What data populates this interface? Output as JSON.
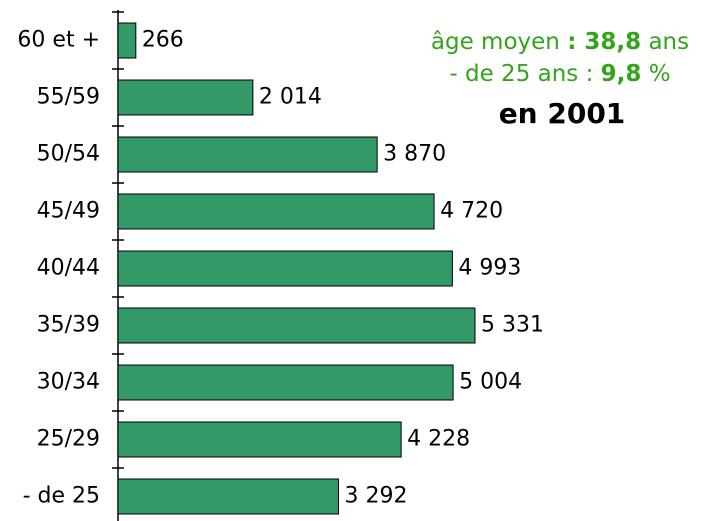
{
  "chart_data": {
    "type": "hbar",
    "categories": [
      "60 et +",
      "55/59",
      "50/54",
      "45/49",
      "40/44",
      "35/39",
      "30/34",
      "25/29",
      "- de 25"
    ],
    "values": [
      266,
      2014,
      3870,
      4720,
      4993,
      5331,
      5004,
      4228,
      3292
    ],
    "value_labels": [
      "266",
      "2 014",
      "3 870",
      "4 720",
      "4 993",
      "5 331",
      "5 004",
      "4 228",
      "3 292"
    ],
    "color": "#339966",
    "annotations": [
      [
        "âge moyen ",
        ": 38,8",
        " ans"
      ],
      [
        "- de 25 ans : ",
        "9,8",
        " %"
      ]
    ],
    "title": "en 2001"
  }
}
